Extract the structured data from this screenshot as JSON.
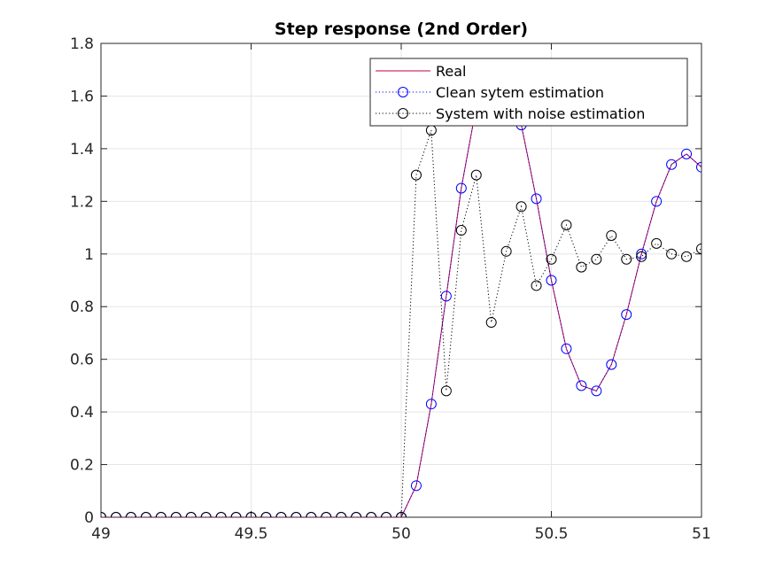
{
  "chart_data": {
    "type": "line",
    "title": "Step response (2nd Order)",
    "xlabel": "",
    "ylabel": "",
    "xlim": [
      49,
      51
    ],
    "ylim": [
      0,
      1.8
    ],
    "x_ticks": [
      49,
      49.5,
      50,
      50.5,
      51
    ],
    "x_tick_labels": [
      "49",
      "49.5",
      "50",
      "50.5",
      "51"
    ],
    "y_ticks": [
      0,
      0.2,
      0.4,
      0.6,
      0.8,
      1,
      1.2,
      1.4,
      1.6,
      1.8
    ],
    "y_tick_labels": [
      "0",
      "0.2",
      "0.4",
      "0.6",
      "0.8",
      "1",
      "1.2",
      "1.4",
      "1.6",
      "1.8"
    ],
    "grid": true,
    "legend_position": "top-right",
    "x": [
      49,
      49.05,
      49.1,
      49.15,
      49.2,
      49.25,
      49.3,
      49.35,
      49.4,
      49.45,
      49.5,
      49.55,
      49.6,
      49.65,
      49.7,
      49.75,
      49.8,
      49.85,
      49.9,
      49.95,
      50,
      50.05,
      50.1,
      50.15,
      50.2,
      50.25,
      50.3,
      50.35,
      50.4,
      50.45,
      50.5,
      50.55,
      50.6,
      50.65,
      50.7,
      50.75,
      50.8,
      50.85,
      50.9,
      50.95,
      51
    ],
    "series": [
      {
        "name": "Real",
        "style": "solid",
        "color": "#c0003c",
        "marker": "none",
        "values": [
          0,
          0,
          0,
          0,
          0,
          0,
          0,
          0,
          0,
          0,
          0,
          0,
          0,
          0,
          0,
          0,
          0,
          0,
          0,
          0,
          0,
          0.12,
          0.43,
          0.84,
          1.25,
          1.56,
          1.68,
          1.63,
          1.49,
          1.21,
          0.9,
          0.64,
          0.5,
          0.48,
          0.58,
          0.77,
          1.0,
          1.2,
          1.34,
          1.38,
          1.33
        ]
      },
      {
        "name": "Clean sytem estimation",
        "style": "dotted",
        "color": "#0000ff",
        "marker": "circle",
        "values": [
          0,
          0,
          0,
          0,
          0,
          0,
          0,
          0,
          0,
          0,
          0,
          0,
          0,
          0,
          0,
          0,
          0,
          0,
          0,
          0,
          0,
          0.12,
          0.43,
          0.84,
          1.25,
          1.56,
          1.68,
          1.63,
          1.49,
          1.21,
          0.9,
          0.64,
          0.5,
          0.48,
          0.58,
          0.77,
          1.0,
          1.2,
          1.34,
          1.38,
          1.33
        ]
      },
      {
        "name": "System with noise estimation",
        "style": "dotted",
        "color": "#000000",
        "marker": "circle",
        "values": [
          0,
          0,
          0,
          0,
          0,
          0,
          0,
          0,
          0,
          0,
          0,
          0,
          0,
          0,
          0,
          0,
          0,
          0,
          0,
          0,
          0,
          1.3,
          1.47,
          0.48,
          1.09,
          1.3,
          0.74,
          1.01,
          1.18,
          0.88,
          0.98,
          1.11,
          0.95,
          0.98,
          1.07,
          0.98,
          0.99,
          1.04,
          1.0,
          0.99,
          1.02
        ]
      }
    ]
  }
}
